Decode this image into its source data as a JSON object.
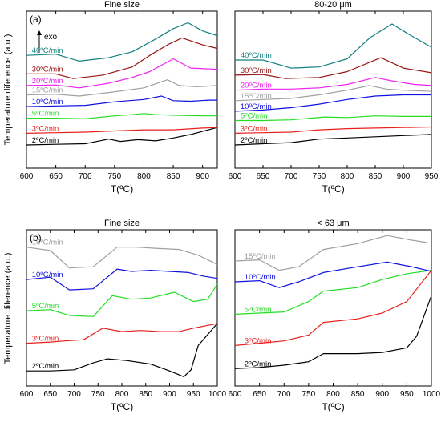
{
  "figure": {
    "ylabel_top": "Temperature diference (a.u.)",
    "ylabel_bottom": "Temperature diference (a.u.)"
  },
  "chart_data": [
    {
      "type": "line",
      "panel_label": "(a)",
      "title": "Fine size",
      "xlabel": "T(ºC)",
      "xlim": [
        600,
        925
      ],
      "xticks": [
        600,
        650,
        700,
        750,
        800,
        850,
        900
      ],
      "annotation": "exo",
      "series": [
        {
          "name": "2ºC/min",
          "color": "#000000",
          "x": [
            600,
            650,
            700,
            740,
            760,
            790,
            820,
            850,
            880,
            910,
            925
          ],
          "y": [
            1.0,
            1.05,
            1.1,
            1.5,
            1.3,
            1.45,
            1.35,
            1.6,
            1.9,
            2.3,
            2.5
          ]
        },
        {
          "name": "3ºC/min",
          "color": "#e8201c",
          "x": [
            600,
            650,
            700,
            750,
            800,
            850,
            900,
            925
          ],
          "y": [
            2.0,
            2.05,
            2.1,
            2.2,
            2.3,
            2.3,
            2.45,
            2.5
          ]
        },
        {
          "name": "5ºC/min",
          "color": "#22dd22",
          "x": [
            600,
            650,
            700,
            750,
            780,
            800,
            820,
            850,
            900,
            925
          ],
          "y": [
            3.3,
            3.3,
            3.25,
            3.5,
            3.6,
            3.7,
            3.6,
            3.55,
            3.5,
            3.5
          ]
        },
        {
          "name": "10ºC/min",
          "color": "#1010e0",
          "x": [
            600,
            650,
            700,
            750,
            800,
            830,
            850,
            880,
            910,
            925
          ],
          "y": [
            4.3,
            4.35,
            4.4,
            4.7,
            4.9,
            5.2,
            4.8,
            4.75,
            4.85,
            4.85
          ]
        },
        {
          "name": "15ºC/min",
          "color": "#a0a0a0",
          "x": [
            600,
            650,
            690,
            740,
            800,
            840,
            860,
            890,
            925
          ],
          "y": [
            5.3,
            5.35,
            5.2,
            5.5,
            5.9,
            6.6,
            6.1,
            6.0,
            6.1
          ]
        },
        {
          "name": "20ºC/min",
          "color": "#ee22ee",
          "x": [
            600,
            650,
            690,
            740,
            780,
            810,
            850,
            880,
            925
          ],
          "y": [
            6.1,
            6.15,
            5.9,
            6.3,
            6.8,
            7.3,
            8.4,
            7.6,
            7.5
          ]
        },
        {
          "name": "30ºC/min",
          "color": "#991515",
          "x": [
            600,
            650,
            680,
            730,
            780,
            810,
            840,
            865,
            900,
            925
          ],
          "y": [
            7.1,
            7.1,
            6.7,
            7.0,
            7.7,
            8.7,
            9.6,
            10.2,
            9.6,
            9.3
          ]
        },
        {
          "name": "40ºC/min",
          "color": "#148080",
          "x": [
            600,
            650,
            690,
            740,
            780,
            820,
            850,
            875,
            900,
            925
          ],
          "y": [
            8.7,
            8.8,
            8.2,
            8.5,
            9.0,
            10.1,
            11.0,
            11.5,
            10.8,
            10.4
          ]
        }
      ]
    },
    {
      "type": "line",
      "title": "80-20 μm",
      "xlabel": "T(ºC)",
      "xlim": [
        600,
        950
      ],
      "xticks": [
        600,
        650,
        700,
        750,
        800,
        850,
        900,
        950
      ],
      "series": [
        {
          "name": "2ºC/min",
          "color": "#000000",
          "x": [
            600,
            650,
            700,
            750,
            800,
            850,
            900,
            950
          ],
          "y": [
            1.0,
            1.1,
            1.2,
            1.5,
            1.6,
            1.7,
            1.8,
            1.9
          ]
        },
        {
          "name": "3ºC/min",
          "color": "#e8201c",
          "x": [
            600,
            650,
            700,
            750,
            800,
            850,
            900,
            950
          ],
          "y": [
            2.0,
            2.05,
            2.1,
            2.3,
            2.4,
            2.45,
            2.5,
            2.55
          ]
        },
        {
          "name": "5ºC/min",
          "color": "#22dd22",
          "x": [
            600,
            650,
            700,
            760,
            800,
            850,
            900,
            950
          ],
          "y": [
            3.1,
            3.1,
            3.15,
            3.4,
            3.35,
            3.5,
            3.45,
            3.45
          ]
        },
        {
          "name": "10ºC/min",
          "color": "#1010e0",
          "x": [
            600,
            650,
            700,
            750,
            800,
            850,
            900,
            950
          ],
          "y": [
            3.9,
            4.0,
            4.2,
            4.5,
            4.9,
            5.2,
            5.3,
            5.3
          ]
        },
        {
          "name": "15ºC/min",
          "color": "#a0a0a0",
          "x": [
            600,
            650,
            700,
            750,
            800,
            840,
            870,
            900,
            950
          ],
          "y": [
            4.8,
            4.9,
            5.0,
            5.3,
            5.7,
            6.1,
            5.8,
            5.7,
            5.6
          ]
        },
        {
          "name": "20ºC/min",
          "color": "#ee22ee",
          "x": [
            600,
            650,
            700,
            750,
            800,
            850,
            880,
            920,
            950
          ],
          "y": [
            5.7,
            5.8,
            5.8,
            5.9,
            6.2,
            6.8,
            6.5,
            6.2,
            6.1
          ]
        },
        {
          "name": "30ºC/min",
          "color": "#991515",
          "x": [
            600,
            650,
            690,
            750,
            800,
            830,
            860,
            900,
            950
          ],
          "y": [
            7.0,
            7.05,
            6.7,
            6.8,
            7.3,
            7.9,
            8.5,
            7.6,
            7.2
          ]
        },
        {
          "name": "40ºC/min",
          "color": "#148080",
          "x": [
            600,
            650,
            700,
            750,
            800,
            840,
            880,
            910,
            950
          ],
          "y": [
            8.3,
            8.3,
            7.6,
            7.7,
            8.4,
            10.2,
            11.4,
            10.5,
            9.4
          ]
        }
      ]
    },
    {
      "type": "line",
      "panel_label": "(b)",
      "title": "Fine size",
      "xlabel": "T(ºC)",
      "xlim": [
        600,
        1000
      ],
      "xticks": [
        600,
        650,
        700,
        750,
        800,
        850,
        900,
        950,
        1000
      ],
      "series": [
        {
          "name": "2ºC/min",
          "color": "#000000",
          "x": [
            600,
            650,
            700,
            740,
            770,
            810,
            860,
            900,
            930,
            945,
            960,
            1000
          ],
          "y": [
            0.3,
            0.3,
            0.4,
            1.0,
            1.35,
            1.2,
            0.9,
            0.3,
            -0.2,
            0.4,
            2.5,
            4.4
          ]
        },
        {
          "name": "3ºC/min",
          "color": "#e8201c",
          "x": [
            600,
            650,
            680,
            720,
            760,
            800,
            840,
            880,
            920,
            950,
            1000
          ],
          "y": [
            2.7,
            2.8,
            2.9,
            3.0,
            4.0,
            3.7,
            3.8,
            3.7,
            3.7,
            4.0,
            4.4
          ]
        },
        {
          "name": "5ºC/min",
          "color": "#22dd22",
          "x": [
            600,
            650,
            690,
            740,
            780,
            820,
            860,
            910,
            950,
            980,
            1000
          ],
          "y": [
            5.5,
            5.6,
            5.1,
            5.0,
            6.8,
            6.5,
            6.6,
            7.1,
            6.3,
            6.5,
            7.8
          ]
        },
        {
          "name": "10ºC/min",
          "color": "#1010e0",
          "x": [
            600,
            650,
            690,
            740,
            790,
            820,
            860,
            900,
            940,
            970,
            1000
          ],
          "y": [
            8.2,
            8.4,
            7.3,
            7.4,
            9.1,
            8.9,
            9.0,
            8.9,
            8.8,
            8.5,
            8.3
          ]
        },
        {
          "name": "15ºC/min",
          "color": "#a0a0a0",
          "x": [
            600,
            650,
            690,
            740,
            790,
            830,
            870,
            920,
            960,
            1000
          ],
          "y": [
            11.0,
            10.7,
            9.2,
            9.3,
            11.0,
            11.0,
            10.9,
            10.8,
            10.3,
            9.5
          ]
        }
      ]
    },
    {
      "type": "line",
      "title": "< 63 μm",
      "xlabel": "T(ºC)",
      "xlim": [
        600,
        1000
      ],
      "xticks": [
        600,
        650,
        700,
        750,
        800,
        850,
        900,
        950,
        1000
      ],
      "series": [
        {
          "name": "2ºC/min",
          "color": "#000000",
          "x": [
            600,
            650,
            700,
            750,
            780,
            850,
            900,
            950,
            970,
            1000
          ],
          "y": [
            0.5,
            0.6,
            0.8,
            1.1,
            1.8,
            1.8,
            1.9,
            2.3,
            3.3,
            6.8
          ]
        },
        {
          "name": "3ºC/min",
          "color": "#e8201c",
          "x": [
            600,
            650,
            700,
            750,
            780,
            850,
            900,
            950,
            1000
          ],
          "y": [
            2.5,
            2.7,
            2.9,
            3.4,
            4.5,
            4.8,
            5.3,
            6.3,
            9.0
          ]
        },
        {
          "name": "5ºC/min",
          "color": "#22dd22",
          "x": [
            600,
            650,
            700,
            750,
            780,
            850,
            900,
            950,
            1000
          ],
          "y": [
            5.2,
            5.3,
            5.4,
            6.3,
            7.2,
            7.5,
            8.2,
            8.7,
            9.0
          ]
        },
        {
          "name": "10ºC/min",
          "color": "#1010e0",
          "x": [
            600,
            650,
            690,
            730,
            780,
            850,
            910,
            960,
            1000
          ],
          "y": [
            8.0,
            8.1,
            7.5,
            8.0,
            8.8,
            9.3,
            9.7,
            9.3,
            8.9
          ]
        },
        {
          "name": "15ºC/min",
          "color": "#a0a0a0",
          "x": [
            600,
            650,
            690,
            730,
            780,
            850,
            910,
            960,
            990
          ],
          "y": [
            9.8,
            9.9,
            9.0,
            9.3,
            10.8,
            11.3,
            12.0,
            11.6,
            11.4
          ]
        }
      ]
    }
  ]
}
